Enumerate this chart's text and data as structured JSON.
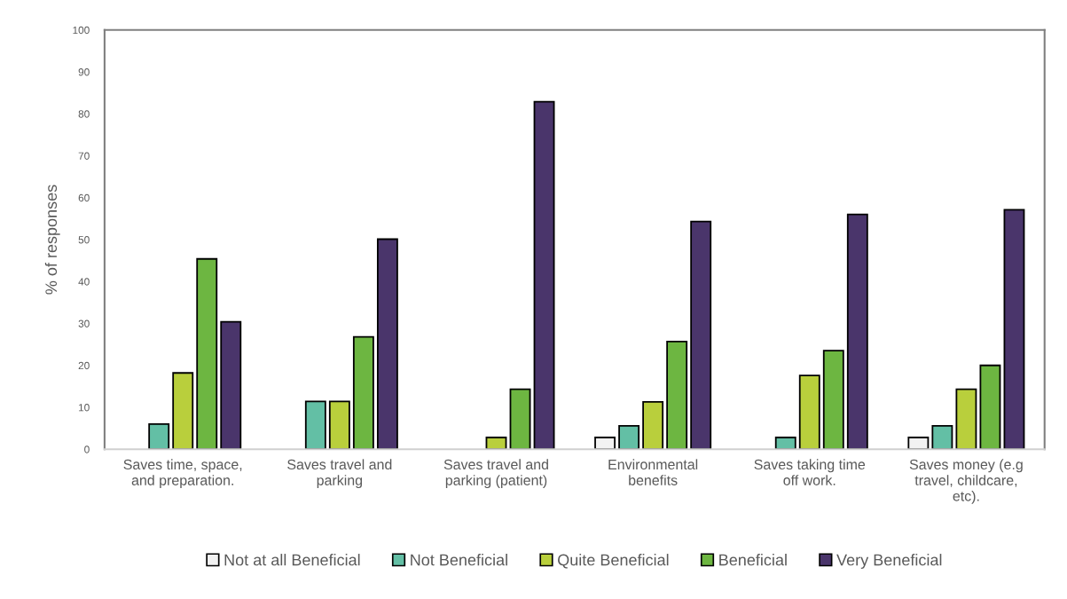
{
  "chart_data": {
    "type": "bar",
    "categories": [
      "Saves time, space, and preparation.",
      "Saves travel and parking",
      "Saves travel and parking (patient)",
      "Environmental benefits",
      "Saves taking time off work.",
      "Saves money (e.g travel, childcare, etc)."
    ],
    "series": [
      {
        "name": "Not at all Beneficial",
        "color": "#f2f2f2",
        "values": [
          null,
          null,
          null,
          2.8,
          null,
          2.8
        ]
      },
      {
        "name": "Not Beneficial",
        "color": "#63bfa5",
        "values": [
          6.0,
          11.4,
          null,
          5.6,
          2.8,
          5.6
        ]
      },
      {
        "name": "Quite Beneficial",
        "color": "#b9cf3c",
        "values": [
          18.2,
          11.4,
          2.8,
          11.3,
          17.6,
          14.3
        ]
      },
      {
        "name": "Beneficial",
        "color": "#6db641",
        "values": [
          45.4,
          26.8,
          14.3,
          25.7,
          23.5,
          20.0
        ]
      },
      {
        "name": "Very Beneficial",
        "color": "#4a356b",
        "values": [
          30.4,
          50.1,
          82.9,
          54.3,
          56.0,
          57.1
        ]
      }
    ],
    "ylabel": "% of responses",
    "ylim": [
      0,
      100
    ],
    "yticks": [
      0,
      10,
      20,
      30,
      40,
      50,
      60,
      70,
      80,
      90,
      100
    ],
    "legend": "bottom"
  }
}
